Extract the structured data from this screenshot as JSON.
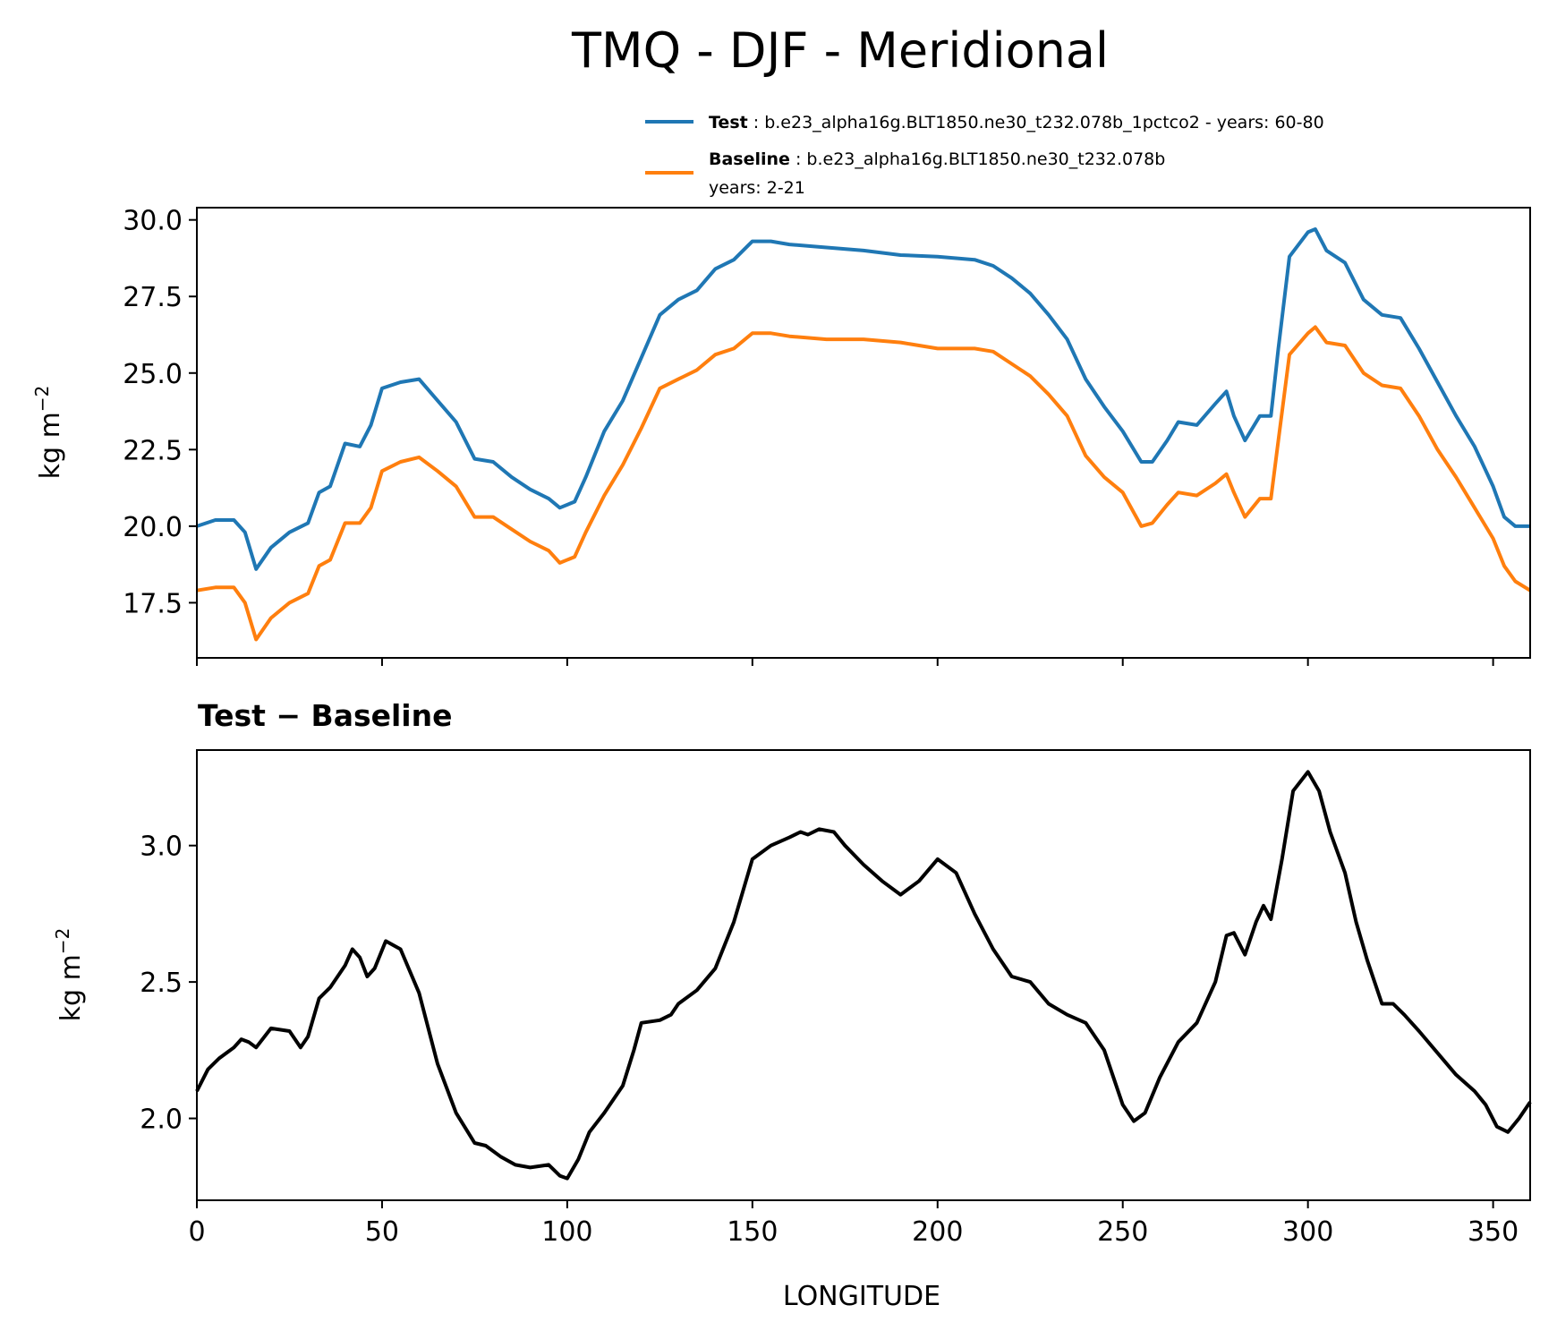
{
  "title": "TMQ - DJF - Meridional",
  "legend": {
    "test": {
      "label": "Test",
      "text": "b.e23_alpha16g.BLT1850.ne30_t232.078b_1pctco2 - years: 60-80",
      "color": "#1f77b4"
    },
    "baseline": {
      "label": "Baseline",
      "text": "b.e23_alpha16g.BLT1850.ne30_t232.078b",
      "text2": "years: 2-21",
      "color": "#ff7f0e"
    }
  },
  "chart_data": [
    {
      "type": "line",
      "title": "",
      "xlabel": "",
      "ylabel": "kg m",
      "ylabel_sup": "−2",
      "xlim": [
        0,
        360
      ],
      "ylim": [
        15.7,
        30.4
      ],
      "yticks": [
        "17.5",
        "20.0",
        "22.5",
        "25.0",
        "27.5",
        "30.0"
      ],
      "xticks": [
        0,
        50,
        100,
        150,
        200,
        250,
        300,
        350
      ],
      "series": [
        {
          "name": "Test",
          "color": "#1f77b4",
          "points": [
            [
              0,
              20.0
            ],
            [
              5,
              20.2
            ],
            [
              10,
              20.2
            ],
            [
              13,
              19.8
            ],
            [
              16,
              18.6
            ],
            [
              20,
              19.3
            ],
            [
              25,
              19.8
            ],
            [
              30,
              20.1
            ],
            [
              33,
              21.1
            ],
            [
              36,
              21.3
            ],
            [
              40,
              22.7
            ],
            [
              44,
              22.6
            ],
            [
              47,
              23.3
            ],
            [
              50,
              24.5
            ],
            [
              55,
              24.7
            ],
            [
              60,
              24.8
            ],
            [
              65,
              24.1
            ],
            [
              70,
              23.4
            ],
            [
              75,
              22.2
            ],
            [
              80,
              22.1
            ],
            [
              85,
              21.6
            ],
            [
              90,
              21.2
            ],
            [
              95,
              20.9
            ],
            [
              98,
              20.6
            ],
            [
              102,
              20.8
            ],
            [
              105,
              21.6
            ],
            [
              110,
              23.1
            ],
            [
              115,
              24.1
            ],
            [
              120,
              25.5
            ],
            [
              125,
              26.9
            ],
            [
              130,
              27.4
            ],
            [
              135,
              27.7
            ],
            [
              140,
              28.4
            ],
            [
              145,
              28.7
            ],
            [
              150,
              29.3
            ],
            [
              155,
              29.3
            ],
            [
              160,
              29.2
            ],
            [
              170,
              29.1
            ],
            [
              180,
              29.0
            ],
            [
              190,
              28.85
            ],
            [
              200,
              28.8
            ],
            [
              210,
              28.7
            ],
            [
              215,
              28.5
            ],
            [
              220,
              28.1
            ],
            [
              225,
              27.6
            ],
            [
              230,
              26.9
            ],
            [
              235,
              26.1
            ],
            [
              240,
              24.8
            ],
            [
              245,
              23.9
            ],
            [
              250,
              23.1
            ],
            [
              255,
              22.1
            ],
            [
              258,
              22.1
            ],
            [
              262,
              22.8
            ],
            [
              265,
              23.4
            ],
            [
              270,
              23.3
            ],
            [
              275,
              24.0
            ],
            [
              278,
              24.4
            ],
            [
              280,
              23.6
            ],
            [
              283,
              22.8
            ],
            [
              287,
              23.6
            ],
            [
              290,
              23.6
            ],
            [
              292,
              25.8
            ],
            [
              295,
              28.8
            ],
            [
              300,
              29.6
            ],
            [
              302,
              29.7
            ],
            [
              305,
              29.0
            ],
            [
              310,
              28.6
            ],
            [
              315,
              27.4
            ],
            [
              320,
              26.9
            ],
            [
              325,
              26.8
            ],
            [
              330,
              25.8
            ],
            [
              335,
              24.7
            ],
            [
              340,
              23.6
            ],
            [
              345,
              22.6
            ],
            [
              350,
              21.3
            ],
            [
              353,
              20.3
            ],
            [
              356,
              20.0
            ],
            [
              360,
              20.0
            ]
          ]
        },
        {
          "name": "Baseline",
          "color": "#ff7f0e",
          "points": [
            [
              0,
              17.9
            ],
            [
              5,
              18.0
            ],
            [
              10,
              18.0
            ],
            [
              13,
              17.5
            ],
            [
              16,
              16.3
            ],
            [
              20,
              17.0
            ],
            [
              25,
              17.5
            ],
            [
              30,
              17.8
            ],
            [
              33,
              18.7
            ],
            [
              36,
              18.9
            ],
            [
              40,
              20.1
            ],
            [
              44,
              20.1
            ],
            [
              47,
              20.6
            ],
            [
              50,
              21.8
            ],
            [
              55,
              22.1
            ],
            [
              60,
              22.25
            ],
            [
              65,
              21.8
            ],
            [
              70,
              21.3
            ],
            [
              75,
              20.3
            ],
            [
              80,
              20.3
            ],
            [
              85,
              19.9
            ],
            [
              90,
              19.5
            ],
            [
              95,
              19.2
            ],
            [
              98,
              18.8
            ],
            [
              102,
              19.0
            ],
            [
              105,
              19.8
            ],
            [
              110,
              21.0
            ],
            [
              115,
              22.0
            ],
            [
              120,
              23.2
            ],
            [
              125,
              24.5
            ],
            [
              130,
              24.8
            ],
            [
              135,
              25.1
            ],
            [
              140,
              25.6
            ],
            [
              145,
              25.8
            ],
            [
              150,
              26.3
            ],
            [
              155,
              26.3
            ],
            [
              160,
              26.2
            ],
            [
              170,
              26.1
            ],
            [
              180,
              26.1
            ],
            [
              190,
              26.0
            ],
            [
              200,
              25.8
            ],
            [
              210,
              25.8
            ],
            [
              215,
              25.7
            ],
            [
              220,
              25.3
            ],
            [
              225,
              24.9
            ],
            [
              230,
              24.3
            ],
            [
              235,
              23.6
            ],
            [
              240,
              22.3
            ],
            [
              245,
              21.6
            ],
            [
              250,
              21.1
            ],
            [
              255,
              20.0
            ],
            [
              258,
              20.1
            ],
            [
              262,
              20.7
            ],
            [
              265,
              21.1
            ],
            [
              270,
              21.0
            ],
            [
              275,
              21.4
            ],
            [
              278,
              21.7
            ],
            [
              280,
              21.1
            ],
            [
              283,
              20.3
            ],
            [
              287,
              20.9
            ],
            [
              290,
              20.9
            ],
            [
              292,
              22.8
            ],
            [
              295,
              25.6
            ],
            [
              300,
              26.3
            ],
            [
              302,
              26.5
            ],
            [
              305,
              26.0
            ],
            [
              310,
              25.9
            ],
            [
              315,
              25.0
            ],
            [
              320,
              24.6
            ],
            [
              325,
              24.5
            ],
            [
              330,
              23.6
            ],
            [
              335,
              22.5
            ],
            [
              340,
              21.6
            ],
            [
              345,
              20.6
            ],
            [
              350,
              19.6
            ],
            [
              353,
              18.7
            ],
            [
              356,
              18.2
            ],
            [
              360,
              17.9
            ]
          ]
        }
      ]
    },
    {
      "type": "line",
      "title": "Test − Baseline",
      "xlabel": "LONGITUDE",
      "ylabel": "kg m",
      "ylabel_sup": "−2",
      "xlim": [
        0,
        360
      ],
      "ylim": [
        1.7,
        3.35
      ],
      "yticks": [
        "2.0",
        "2.5",
        "3.0"
      ],
      "xticks": [
        "0",
        "50",
        "100",
        "150",
        "200",
        "250",
        "300",
        "350"
      ],
      "series": [
        {
          "name": "",
          "color": "#000000",
          "points": [
            [
              0,
              2.1
            ],
            [
              3,
              2.18
            ],
            [
              6,
              2.22
            ],
            [
              10,
              2.26
            ],
            [
              12,
              2.29
            ],
            [
              14,
              2.28
            ],
            [
              16,
              2.26
            ],
            [
              20,
              2.33
            ],
            [
              25,
              2.32
            ],
            [
              28,
              2.26
            ],
            [
              30,
              2.3
            ],
            [
              33,
              2.44
            ],
            [
              36,
              2.48
            ],
            [
              40,
              2.56
            ],
            [
              42,
              2.62
            ],
            [
              44,
              2.59
            ],
            [
              46,
              2.52
            ],
            [
              48,
              2.55
            ],
            [
              51,
              2.65
            ],
            [
              55,
              2.62
            ],
            [
              60,
              2.46
            ],
            [
              65,
              2.2
            ],
            [
              70,
              2.02
            ],
            [
              75,
              1.91
            ],
            [
              78,
              1.9
            ],
            [
              82,
              1.86
            ],
            [
              86,
              1.83
            ],
            [
              90,
              1.82
            ],
            [
              95,
              1.83
            ],
            [
              98,
              1.79
            ],
            [
              100,
              1.78
            ],
            [
              103,
              1.85
            ],
            [
              106,
              1.95
            ],
            [
              110,
              2.02
            ],
            [
              115,
              2.12
            ],
            [
              118,
              2.25
            ],
            [
              120,
              2.35
            ],
            [
              125,
              2.36
            ],
            [
              128,
              2.38
            ],
            [
              130,
              2.42
            ],
            [
              135,
              2.47
            ],
            [
              140,
              2.55
            ],
            [
              145,
              2.72
            ],
            [
              150,
              2.95
            ],
            [
              155,
              3.0
            ],
            [
              160,
              3.03
            ],
            [
              163,
              3.05
            ],
            [
              165,
              3.04
            ],
            [
              168,
              3.06
            ],
            [
              172,
              3.05
            ],
            [
              175,
              3.0
            ],
            [
              180,
              2.93
            ],
            [
              185,
              2.87
            ],
            [
              190,
              2.82
            ],
            [
              195,
              2.87
            ],
            [
              200,
              2.95
            ],
            [
              205,
              2.9
            ],
            [
              210,
              2.75
            ],
            [
              215,
              2.62
            ],
            [
              220,
              2.52
            ],
            [
              225,
              2.5
            ],
            [
              230,
              2.42
            ],
            [
              235,
              2.38
            ],
            [
              240,
              2.35
            ],
            [
              245,
              2.25
            ],
            [
              250,
              2.05
            ],
            [
              253,
              1.99
            ],
            [
              256,
              2.02
            ],
            [
              260,
              2.15
            ],
            [
              265,
              2.28
            ],
            [
              270,
              2.35
            ],
            [
              275,
              2.5
            ],
            [
              278,
              2.67
            ],
            [
              280,
              2.68
            ],
            [
              283,
              2.6
            ],
            [
              286,
              2.72
            ],
            [
              288,
              2.78
            ],
            [
              290,
              2.73
            ],
            [
              293,
              2.95
            ],
            [
              296,
              3.2
            ],
            [
              300,
              3.27
            ],
            [
              303,
              3.2
            ],
            [
              306,
              3.05
            ],
            [
              310,
              2.9
            ],
            [
              313,
              2.72
            ],
            [
              316,
              2.58
            ],
            [
              320,
              2.42
            ],
            [
              323,
              2.42
            ],
            [
              326,
              2.38
            ],
            [
              330,
              2.32
            ],
            [
              335,
              2.24
            ],
            [
              340,
              2.16
            ],
            [
              345,
              2.1
            ],
            [
              348,
              2.05
            ],
            [
              351,
              1.97
            ],
            [
              354,
              1.95
            ],
            [
              357,
              2.0
            ],
            [
              360,
              2.06
            ]
          ]
        }
      ]
    }
  ]
}
